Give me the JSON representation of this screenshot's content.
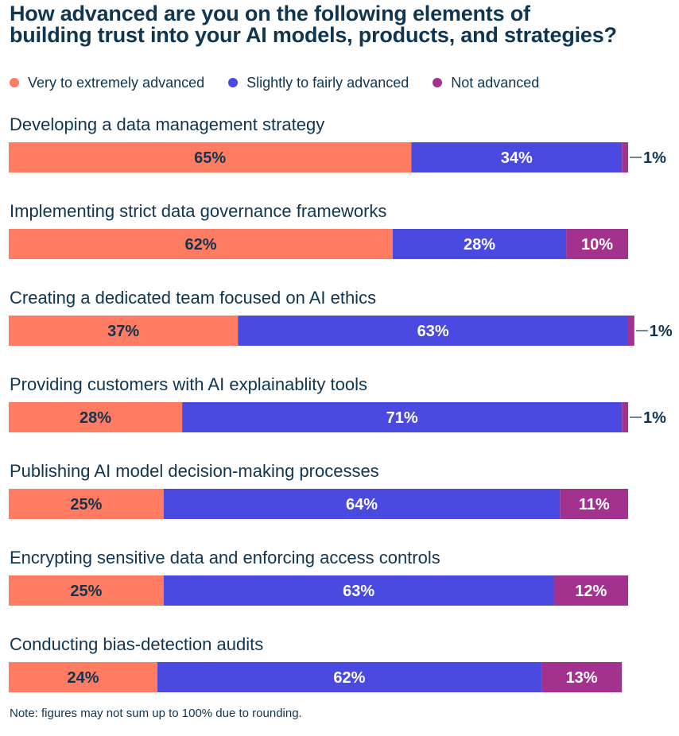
{
  "title_line1": "How advanced are you on the following elements of",
  "title_line2": "building trust into your AI models, products, and strategies?",
  "colors": {
    "very": "#ff7b61",
    "slightly": "#4a49e0",
    "not": "#a3328e",
    "text_dark": "#0f3550",
    "text_light": "#ffffff"
  },
  "legend": [
    {
      "label": "Very to extremely advanced",
      "color": "#ff7b61"
    },
    {
      "label": "Slightly to fairly advanced",
      "color": "#4a49e0"
    },
    {
      "label": "Not advanced",
      "color": "#a3328e"
    }
  ],
  "note": "Note: figures may not sum up to 100% due to rounding.",
  "chart_data": {
    "type": "bar",
    "orientation": "horizontal",
    "stacked": true,
    "title": "How advanced are you on the following elements of building trust into your AI models, products, and strategies?",
    "xlim": [
      0,
      100
    ],
    "categories": [
      "Developing a data management strategy",
      "Implementing strict data governance frameworks",
      "Creating a dedicated team focused on AI ethics",
      "Providing customers with AI explainablity tools",
      "Publishing AI model decision-making processes",
      "Encrypting sensitive data and enforcing access controls",
      "Conducting bias-detection audits"
    ],
    "series": [
      {
        "name": "Very to extremely advanced",
        "values": [
          65,
          62,
          37,
          28,
          25,
          25,
          24
        ]
      },
      {
        "name": "Slightly to fairly advanced",
        "values": [
          34,
          28,
          63,
          71,
          64,
          63,
          62
        ]
      },
      {
        "name": "Not advanced",
        "values": [
          1,
          10,
          1,
          1,
          11,
          12,
          13
        ]
      }
    ],
    "labels": [
      [
        "65%",
        "34%",
        "1%"
      ],
      [
        "62%",
        "28%",
        "10%"
      ],
      [
        "37%",
        "63%",
        "1%"
      ],
      [
        "28%",
        "71%",
        "1%"
      ],
      [
        "25%",
        "64%",
        "11%"
      ],
      [
        "25%",
        "63%",
        "12%"
      ],
      [
        "24%",
        "62%",
        "13%"
      ]
    ]
  }
}
